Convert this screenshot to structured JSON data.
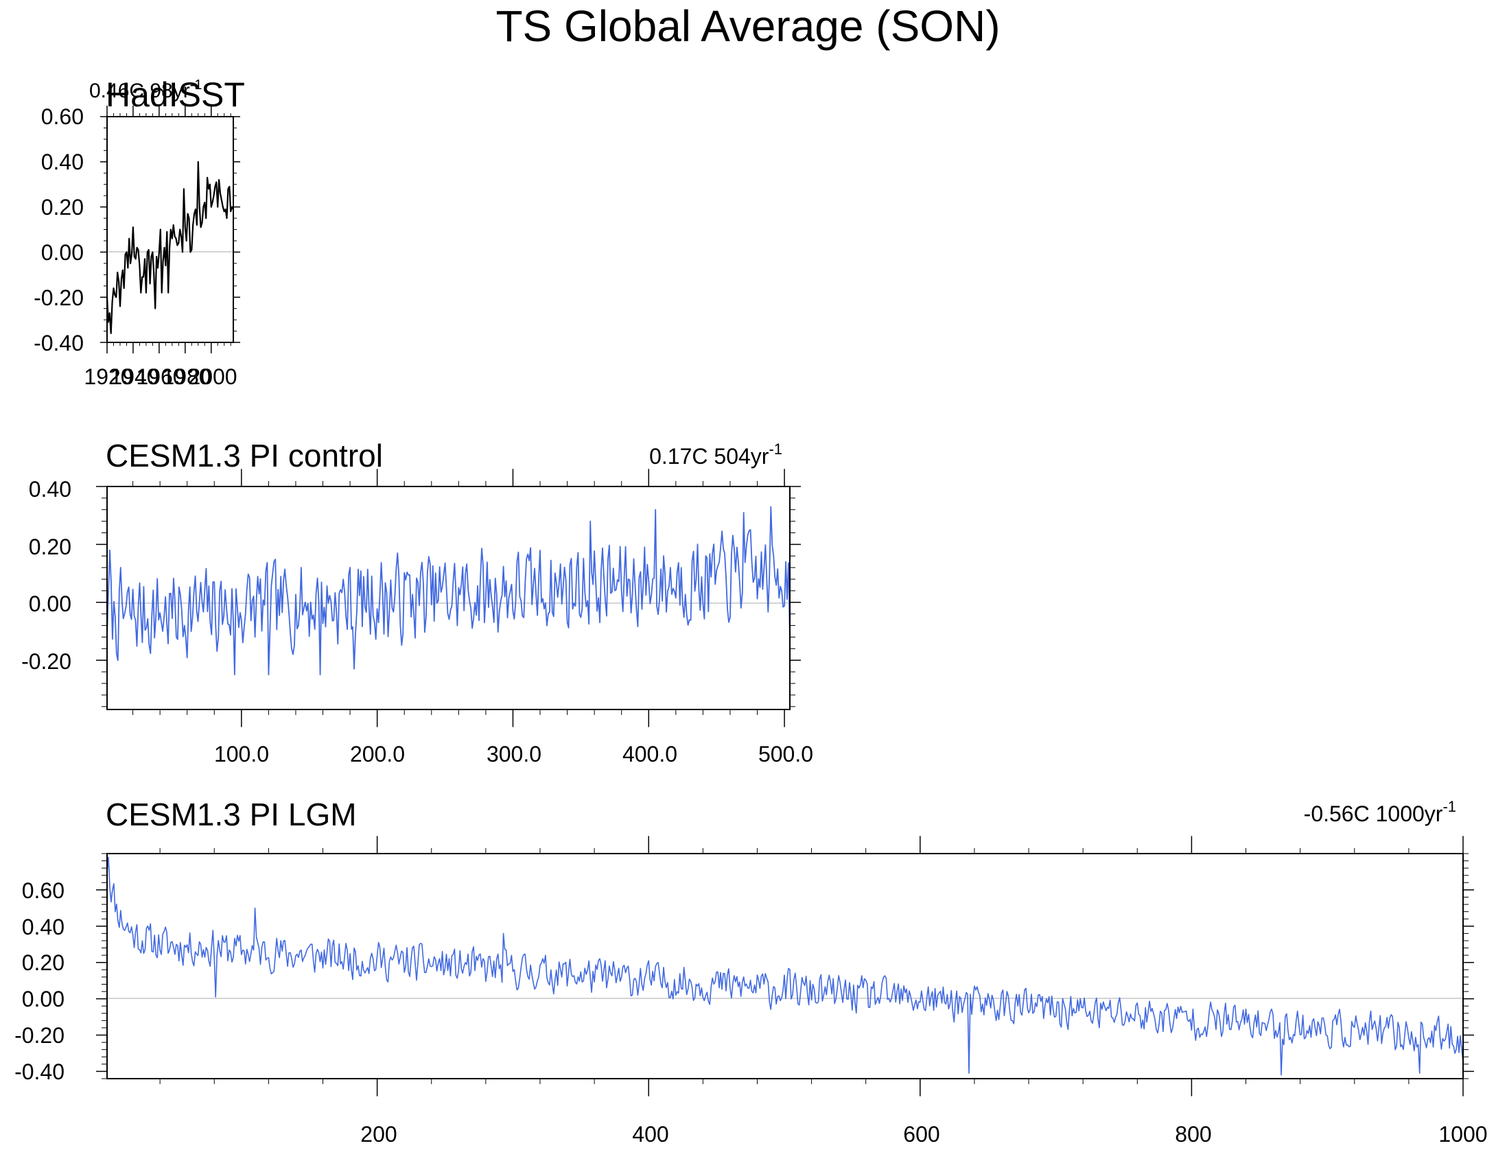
{
  "page_title": "TS Global Average (SON)",
  "colors": {
    "obs_line": "#000000",
    "model_line": "#4169E1",
    "frame": "#000000",
    "zero_line": "#aaaaaa"
  },
  "chart_data": [
    {
      "type": "line",
      "title": "HadISST",
      "trend_label": "0.46C 98yr",
      "x": [
        1920,
        1921,
        1922,
        1923,
        1924,
        1925,
        1926,
        1927,
        1928,
        1929,
        1930,
        1931,
        1932,
        1933,
        1934,
        1935,
        1936,
        1937,
        1938,
        1939,
        1940,
        1941,
        1942,
        1943,
        1944,
        1945,
        1946,
        1947,
        1948,
        1949,
        1950,
        1951,
        1952,
        1953,
        1954,
        1955,
        1956,
        1957,
        1958,
        1959,
        1960,
        1961,
        1962,
        1963,
        1964,
        1965,
        1966,
        1967,
        1968,
        1969,
        1970,
        1971,
        1972,
        1973,
        1974,
        1975,
        1976,
        1977,
        1978,
        1979,
        1980,
        1981,
        1982,
        1983,
        1984,
        1985,
        1986,
        1987,
        1988,
        1989,
        1990,
        1991,
        1992,
        1993,
        1994,
        1995,
        1996,
        1997,
        1998,
        1999,
        2000,
        2001,
        2002,
        2003,
        2004,
        2005,
        2006,
        2007,
        2008,
        2009,
        2010,
        2011,
        2012,
        2013,
        2014,
        2015,
        2016,
        2017
      ],
      "values": [
        -0.2,
        -0.31,
        -0.27,
        -0.36,
        -0.22,
        -0.16,
        -0.19,
        -0.2,
        -0.09,
        -0.13,
        -0.24,
        -0.12,
        -0.08,
        -0.16,
        -0.01,
        0.0,
        -0.07,
        0.06,
        -0.05,
        -0.01,
        0.11,
        -0.02,
        -0.03,
        0.02,
        0.01,
        -0.06,
        -0.18,
        -0.11,
        -0.11,
        -0.03,
        -0.18,
        0.0,
        0.01,
        -0.14,
        -0.02,
        0.0,
        -0.1,
        -0.25,
        -0.02,
        -0.07,
        0.0,
        0.1,
        -0.18,
        -0.04,
        0.02,
        -0.06,
        0.09,
        -0.18,
        0.02,
        0.1,
        0.06,
        0.12,
        0.07,
        0.06,
        0.03,
        0.04,
        0.1,
        0.07,
        0.0,
        0.28,
        0.11,
        0.05,
        0.17,
        0.15,
        0.0,
        0.01,
        0.12,
        0.17,
        0.19,
        0.12,
        0.4,
        0.2,
        0.11,
        0.13,
        0.2,
        0.22,
        0.15,
        0.33,
        0.28,
        0.3,
        0.2,
        0.22,
        0.25,
        0.29,
        0.31,
        0.2,
        0.32,
        0.26,
        0.23,
        0.2,
        0.18,
        0.19,
        0.15,
        0.28,
        0.29,
        0.18,
        0.2,
        0.19
      ],
      "xlim": [
        1920,
        2017
      ],
      "ylim": [
        -0.4,
        0.6
      ],
      "yticks": [
        "0.60",
        "0.40",
        "0.20",
        "0.00",
        "-0.20",
        "-0.40"
      ],
      "xticks": [
        "1920",
        "1940",
        "1960",
        "1980",
        "2000"
      ]
    },
    {
      "type": "line",
      "title": "CESM1.3 PI control",
      "trend_label": "0.17C 504yr",
      "n_points": 504,
      "x_start": 1,
      "seed": 7,
      "trend": [
        -0.05,
        0.1
      ],
      "noise_amp": 0.13,
      "anchors": [
        [
          3,
          0.18
        ],
        [
          95,
          -0.25
        ],
        [
          120,
          -0.25
        ],
        [
          158,
          -0.25
        ],
        [
          183,
          -0.23
        ],
        [
          357,
          0.28
        ],
        [
          405,
          0.32
        ],
        [
          470,
          0.31
        ],
        [
          490,
          0.33
        ],
        [
          501,
          0.14
        ],
        [
          504,
          -0.14
        ]
      ],
      "xlim": [
        1,
        504
      ],
      "ylim": [
        -0.37,
        0.4
      ],
      "yticks": [
        "0.40",
        "0.20",
        "0.00",
        "-0.20"
      ],
      "xticks": [
        "100.0",
        "200.0",
        "300.0",
        "400.0",
        "500.0"
      ]
    },
    {
      "type": "line",
      "title": "CESM1.3 PI LGM",
      "trend_label": "-0.56C 1000yr",
      "n_points": 1000,
      "x_start": 1,
      "seed": 11,
      "trend": [
        0.32,
        -0.22
      ],
      "noise_amp": 0.09,
      "decay": {
        "amp": 0.42,
        "tau": 9
      },
      "anchors": [
        [
          2,
          0.78
        ],
        [
          81,
          0.01
        ],
        [
          110,
          0.5
        ],
        [
          293,
          0.36
        ],
        [
          636,
          -0.41
        ],
        [
          866,
          -0.42
        ],
        [
          968,
          -0.41
        ],
        [
          1000,
          -0.35
        ]
      ],
      "xlim": [
        1,
        1000
      ],
      "ylim": [
        -0.44,
        0.8
      ],
      "yticks": [
        "0.60",
        "0.40",
        "0.20",
        "0.00",
        "-0.20",
        "-0.40"
      ],
      "xticks": [
        "200",
        "400",
        "600",
        "800",
        "1000"
      ]
    }
  ]
}
